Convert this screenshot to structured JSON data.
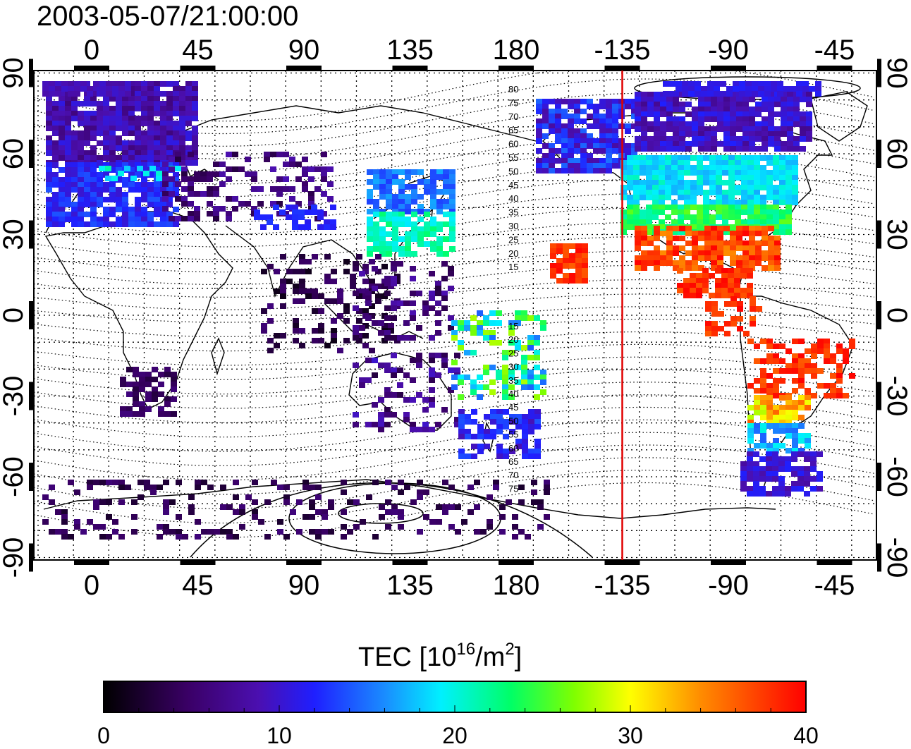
{
  "title": "2003-05-07/21:00:00",
  "axes": {
    "x_ticks": [
      "0",
      "45",
      "90",
      "135",
      "180",
      "-135",
      "-90",
      "-45"
    ],
    "y_ticks": [
      "90",
      "60",
      "30",
      "0",
      "-30",
      "-60",
      "-90"
    ]
  },
  "colorbar": {
    "title_base": "TEC  [10",
    "title_sup1": "16",
    "title_mid": "/m",
    "title_sup2": "2",
    "title_end": "]",
    "tick_labels": [
      "0",
      "10",
      "20",
      "30",
      "40"
    ],
    "min": 0,
    "max": 40
  },
  "meridian_marker": {
    "lon": -135,
    "color": "#e00000"
  },
  "contour_labels_north": [
    "80",
    "75",
    "70",
    "65",
    "60",
    "55",
    "50",
    "45",
    "40",
    "35",
    "30",
    "25",
    "20",
    "15"
  ],
  "contour_labels_south": [
    "15",
    "20",
    "25",
    "30",
    "35",
    "40",
    "45",
    "50",
    "55",
    "60",
    "65",
    "70",
    "75"
  ]
}
